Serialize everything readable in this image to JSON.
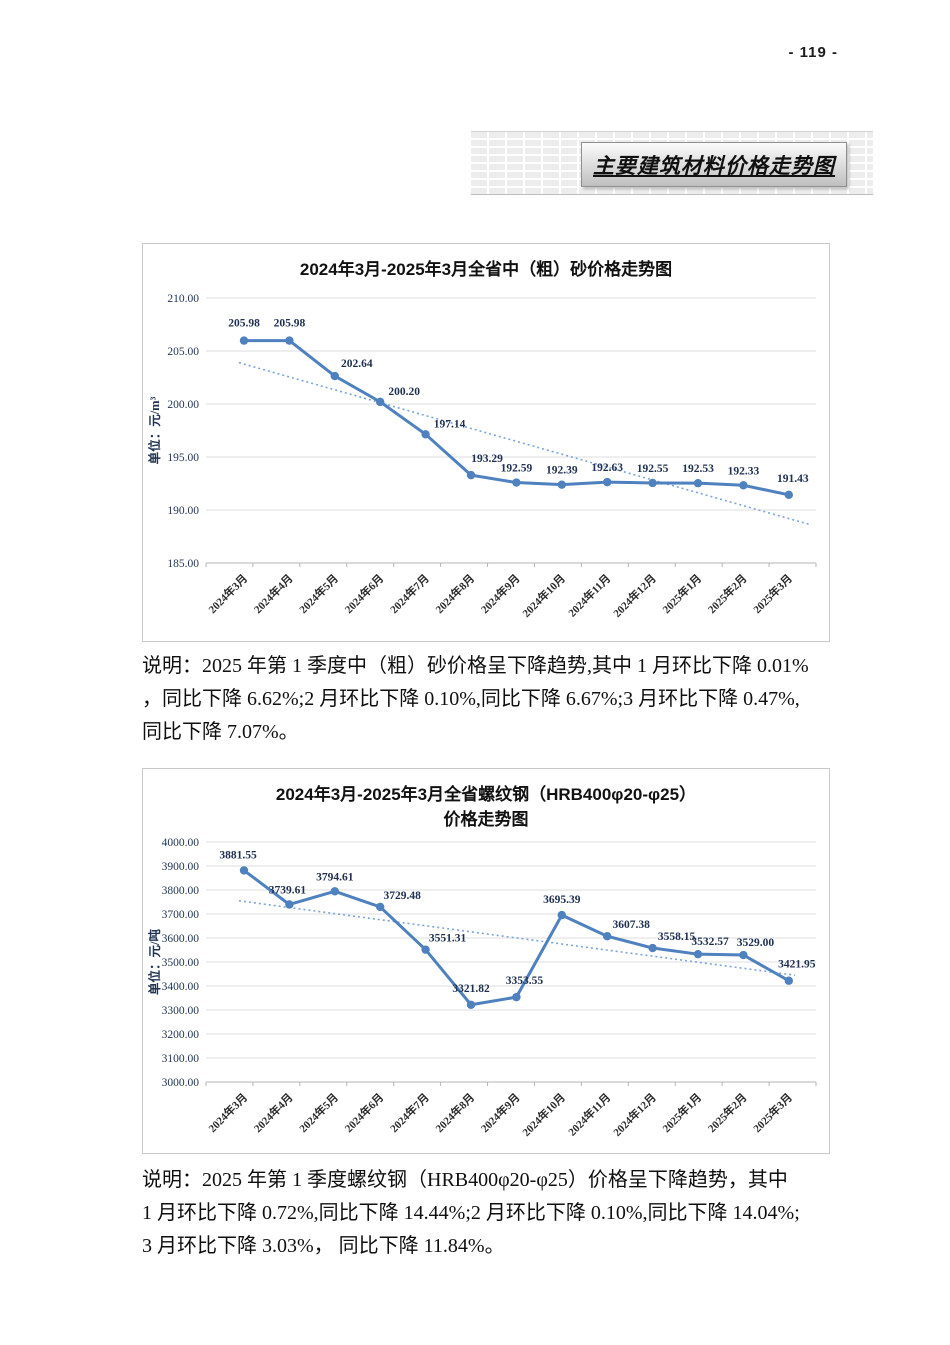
{
  "page": {
    "number": "- 119 -",
    "banner_title": "主要建筑材料价格走势图"
  },
  "notes": [
    {
      "lines": [
        "说明：2025 年第 1 季度中（粗）砂价格呈下降趋势,其中 1 月环比下降 0.01%",
        "，同比下降 6.62%;2 月环比下降 0.10%,同比下降 6.67%;3 月环比下降 0.47%,",
        "同比下降 7.07%。"
      ]
    },
    {
      "lines": [
        "说明：2025 年第 1 季度螺纹钢（HRB400φ20-φ25）价格呈下降趋势，其中",
        "1 月环比下降 0.72%,同比下降 14.44%;2 月环比下降 0.10%,同比下降 14.04%;",
        "3 月环比下降 3.03%， 同比下降 11.84%。"
      ]
    }
  ],
  "chart_data": [
    {
      "type": "line",
      "title": "2024年3月-2025年3月全省中（粗）砂价格走势图",
      "title_lines": [
        "2024年3月-2025年3月全省中（粗）砂价格走势图"
      ],
      "xlabel": "",
      "ylabel": "单位：元/m³",
      "categories": [
        "2024年3月",
        "2024年4月",
        "2024年5月",
        "2024年6月",
        "2024年7月",
        "2024年8月",
        "2024年9月",
        "2024年10月",
        "2024年11月",
        "2024年12月",
        "2025年1月",
        "2025年2月",
        "2025年3月"
      ],
      "values": [
        205.98,
        205.98,
        202.64,
        200.2,
        197.14,
        193.29,
        192.59,
        192.39,
        192.63,
        192.55,
        192.53,
        192.33,
        191.43
      ],
      "ylim": [
        185,
        210
      ],
      "ytick_step": 5,
      "grid": true,
      "legend": "none",
      "trend": {
        "start": 203.9,
        "end": 188.6
      },
      "line_color": "#4e81bd",
      "trend_color": "#7ba4d9",
      "label_color": "#1e2f50"
    },
    {
      "type": "line",
      "title": "2024年3月-2025年3月全省螺纹钢（HRB400φ20-φ25）价格走势图",
      "title_lines": [
        "2024年3月-2025年3月全省螺纹钢（HRB400φ20-φ25）",
        "价格走势图"
      ],
      "xlabel": "",
      "ylabel": "单位：元/吨",
      "categories": [
        "2024年3月",
        "2024年4月",
        "2024年5月",
        "2024年6月",
        "2024年7月",
        "2024年8月",
        "2024年9月",
        "2024年10月",
        "2024年11月",
        "2024年12月",
        "2025年1月",
        "2025年2月",
        "2025年3月"
      ],
      "values": [
        3881.55,
        3739.61,
        3794.61,
        3729.48,
        3551.31,
        3321.82,
        3353.55,
        3695.39,
        3607.38,
        3558.15,
        3532.57,
        3529.0,
        3421.95
      ],
      "ylim": [
        3000,
        4000
      ],
      "ytick_step": 100,
      "grid": true,
      "legend": "none",
      "trend": {
        "start": 3755,
        "end": 3445
      },
      "line_color": "#4e81bd",
      "trend_color": "#7ba4d9",
      "label_color": "#1e2f50"
    }
  ]
}
